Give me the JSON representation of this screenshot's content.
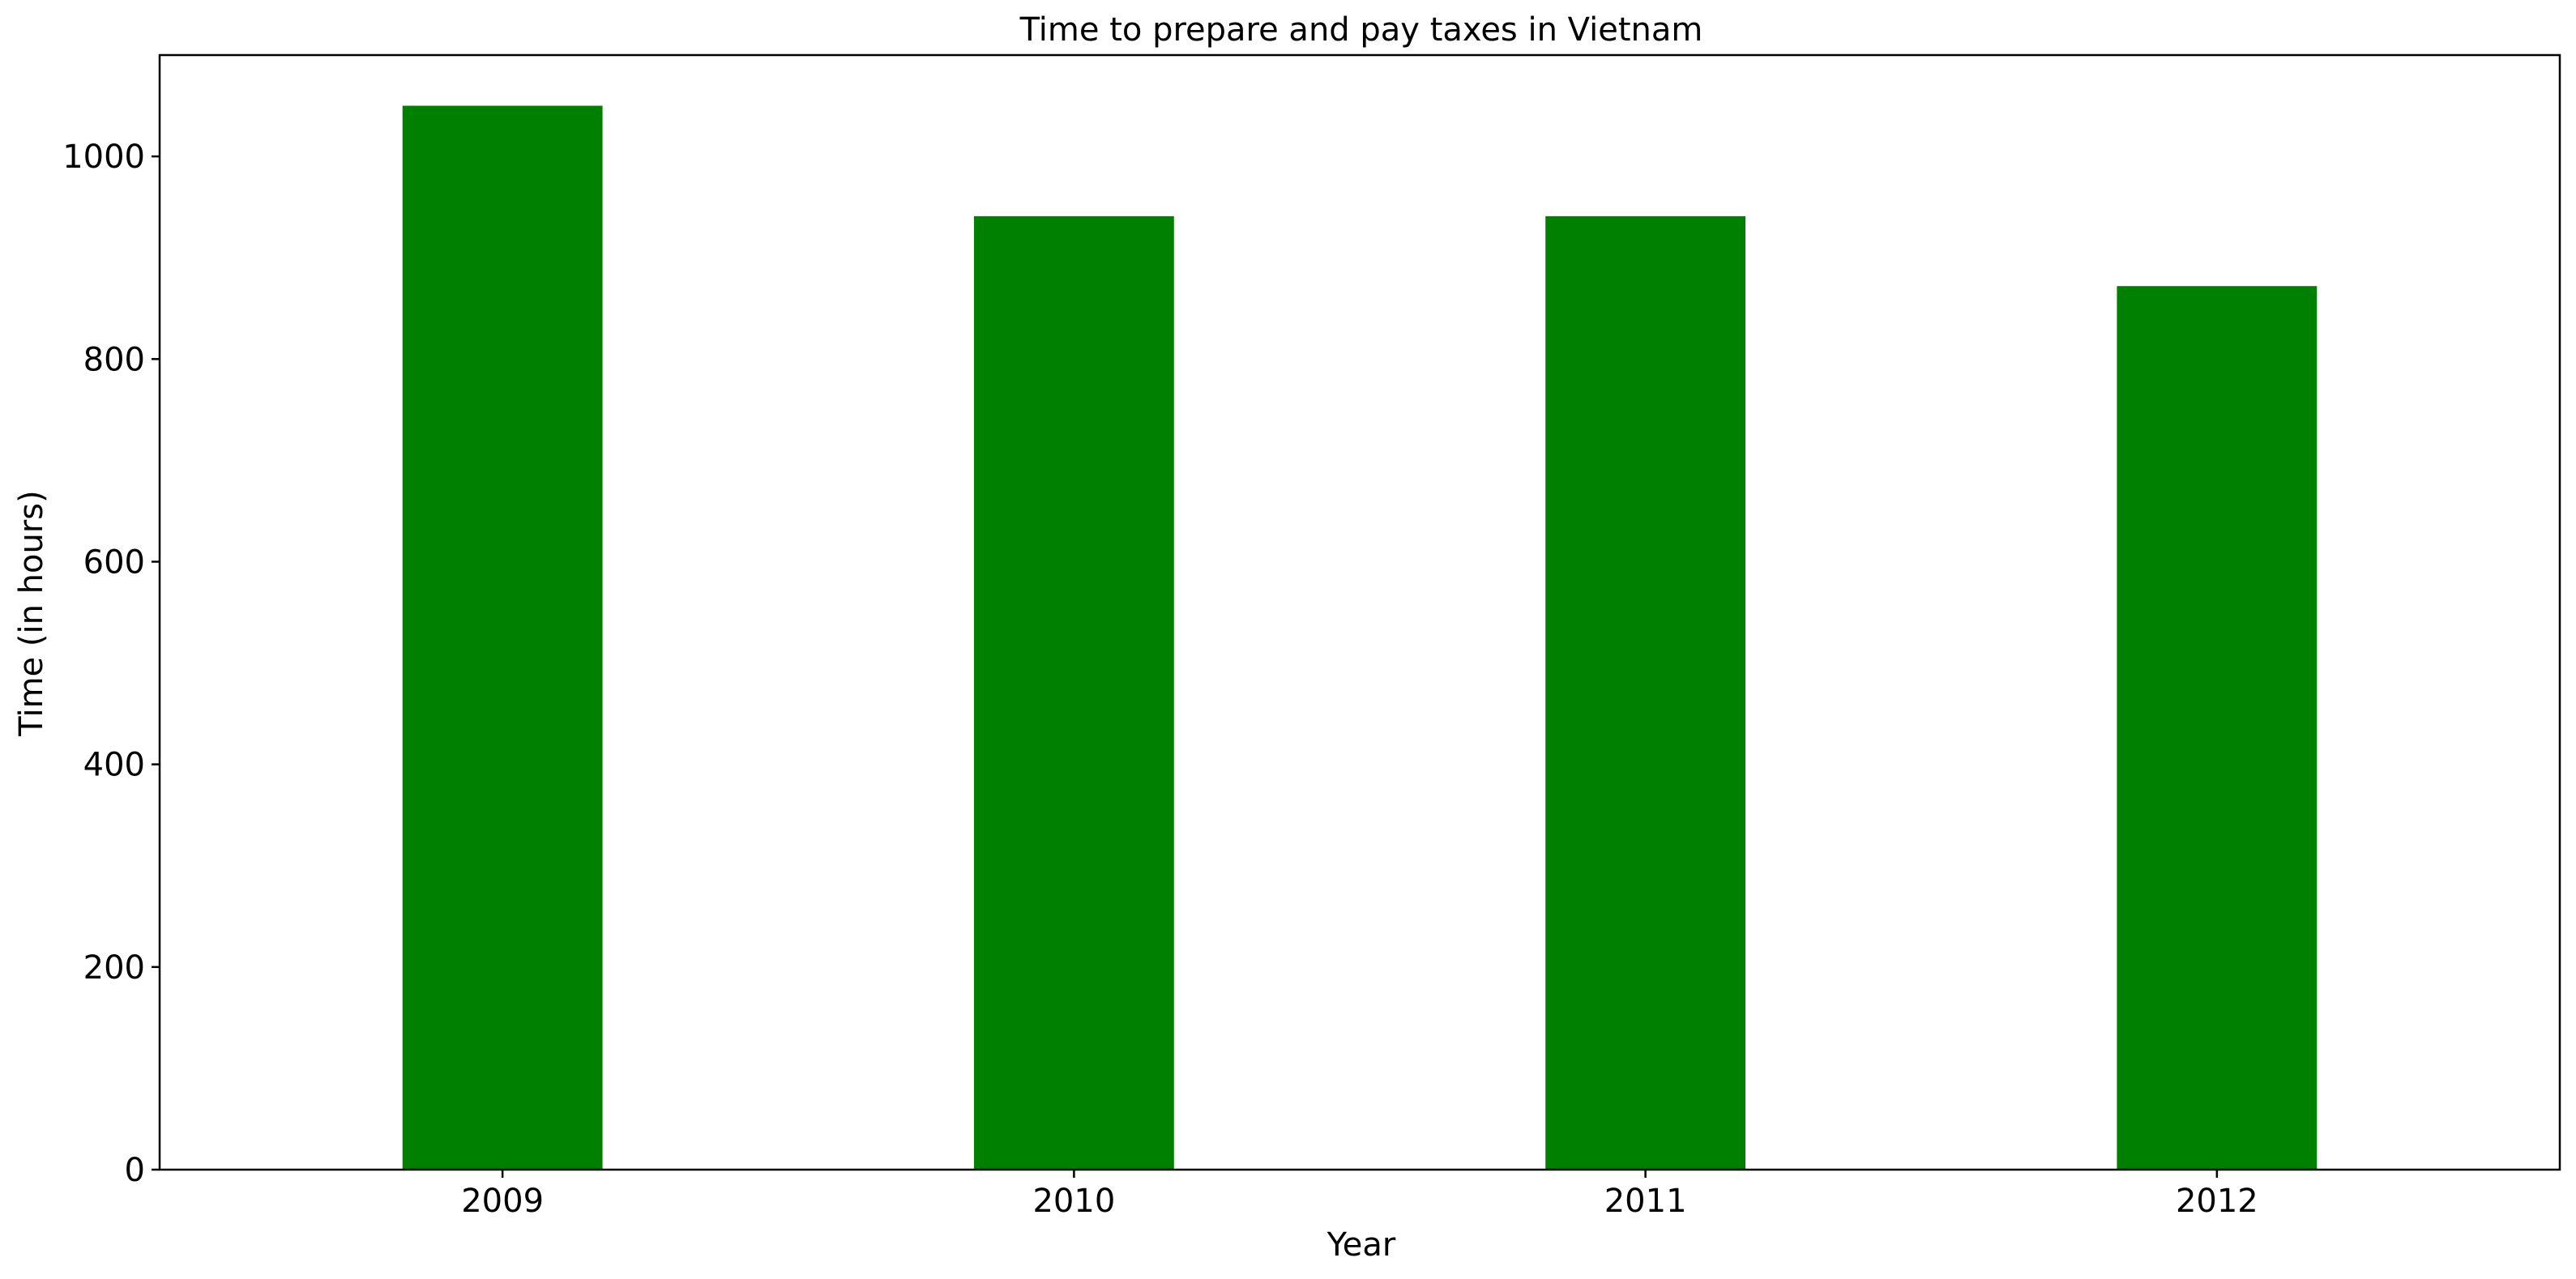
{
  "chart_data": {
    "type": "bar",
    "title": "Time to prepare and pay taxes in Vietnam",
    "xlabel": "Year",
    "ylabel": "Time (in hours)",
    "categories": [
      "2009",
      "2010",
      "2011",
      "2012"
    ],
    "values": [
      1050,
      941,
      941,
      872
    ],
    "ylim": [
      0,
      1100
    ],
    "yticks": [
      0,
      200,
      400,
      600,
      800,
      1000
    ],
    "grid": false,
    "legend": "none",
    "colors": {
      "bar": "#008000",
      "axis": "#000000",
      "background": "#ffffff"
    }
  }
}
